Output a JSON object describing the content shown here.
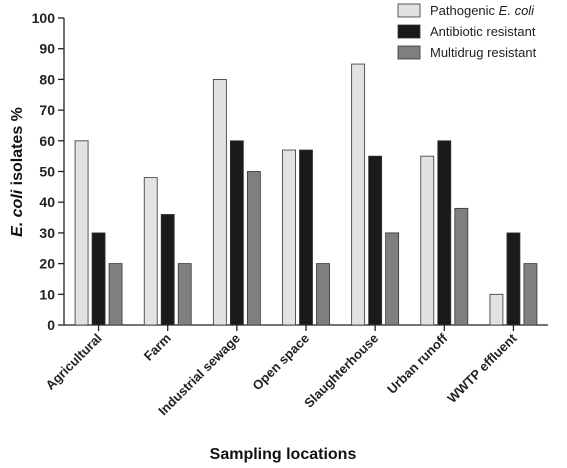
{
  "chart_data": {
    "type": "bar",
    "xlabel": "Sampling locations",
    "ylabel": "E. coli isolates %",
    "ylabel_italic_part": "E. coli",
    "ylabel_rest": " isolates %",
    "ylim": [
      0,
      100
    ],
    "yticks": [
      0,
      10,
      20,
      30,
      40,
      50,
      60,
      70,
      80,
      90,
      100
    ],
    "grid": false,
    "legend_position": "top-right",
    "categories": [
      "Agricultural",
      "Farm",
      "Industrial sewage",
      "Open space",
      "Slaughterhouse",
      "Urban runoff",
      "WWTP effluent"
    ],
    "series": [
      {
        "name": "Pathogenic E. coli",
        "name_prefix": "Pathogenic ",
        "name_italic": "E. coli",
        "color": "#e2e2e2",
        "values": [
          60,
          48,
          80,
          57,
          85,
          55,
          10
        ]
      },
      {
        "name": "Antibiotic resistant",
        "color": "#1a1a1a",
        "values": [
          30,
          36,
          60,
          57,
          55,
          60,
          30
        ]
      },
      {
        "name": "Multidrug resistant",
        "color": "#7f7f7f",
        "values": [
          20,
          20,
          50,
          20,
          30,
          38,
          20
        ]
      }
    ]
  }
}
